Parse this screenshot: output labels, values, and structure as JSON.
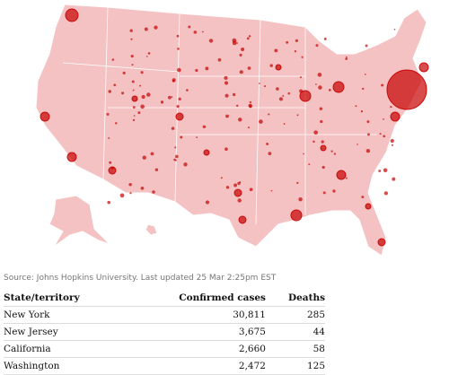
{
  "source": "Source: Johns Hopkins University. Last updated 25 Mar 2:25pm EST",
  "table": {
    "header": [
      "State/territory",
      "Confirmed cases",
      "Deaths"
    ],
    "rows": [
      [
        "New York",
        "30,811",
        "285"
      ],
      [
        "New Jersey",
        "3,675",
        "44"
      ],
      [
        "California",
        "2,660",
        "58"
      ],
      [
        "Washington",
        "2,472",
        "125"
      ]
    ]
  }
}
